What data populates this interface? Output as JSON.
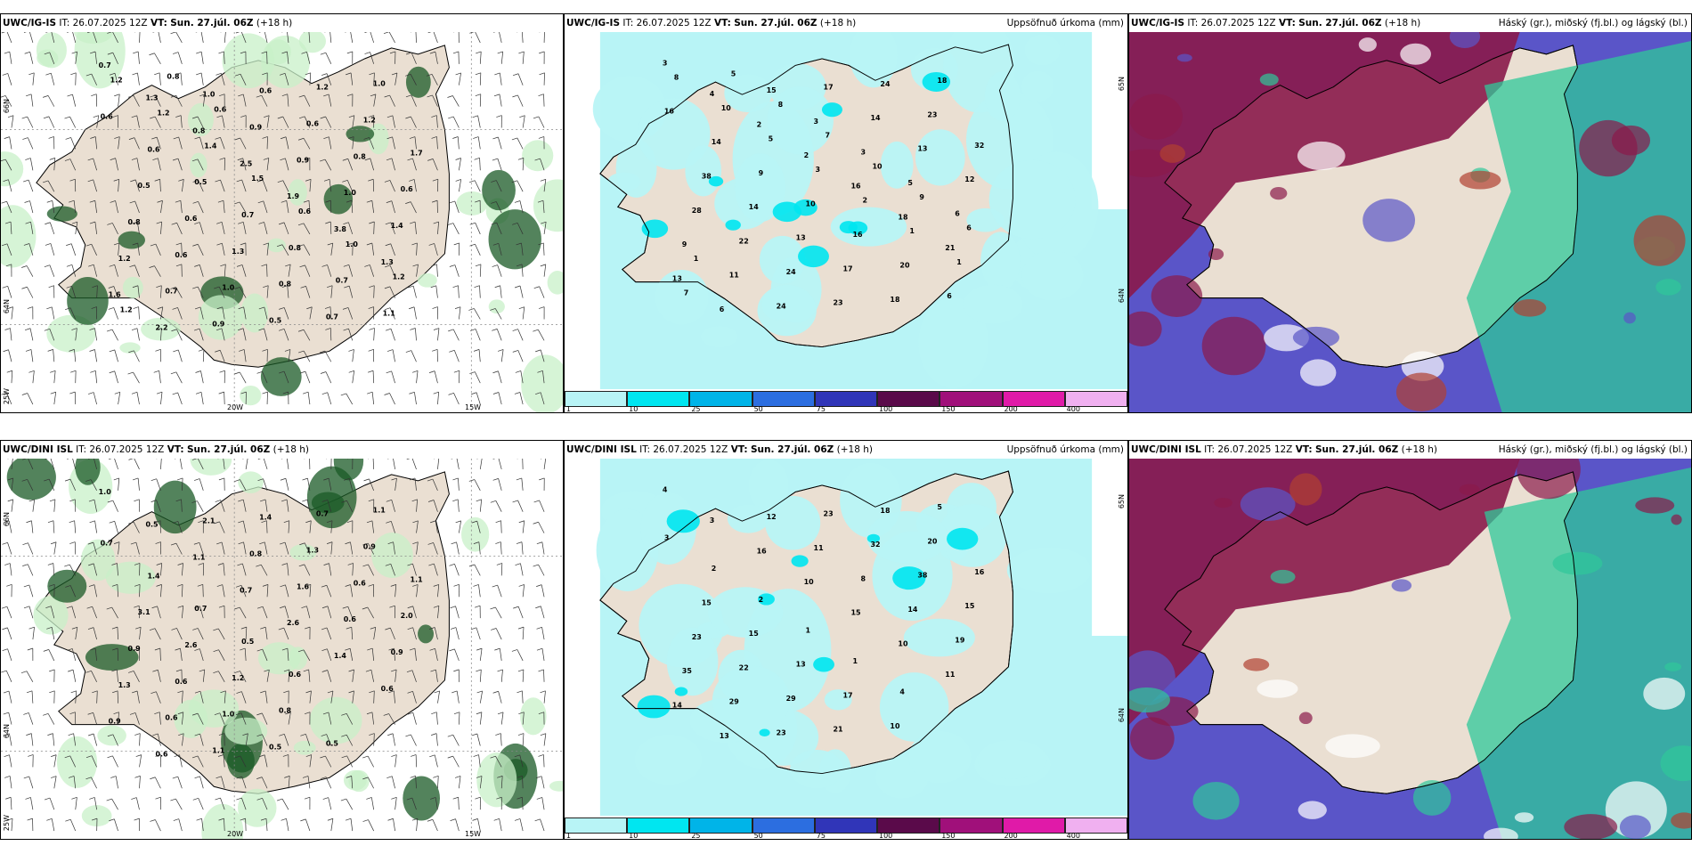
{
  "panels": [
    {
      "model": "UWC/IG-IS",
      "init": "IT: 26.07.2025 12Z",
      "vt_label": "VT:",
      "vt": "Sun. 27.júl. 06Z",
      "lead": "(+18 h)",
      "right_title": "",
      "values": [
        "0.7",
        "1.3",
        "0.8",
        "2.5",
        "1.9",
        "3.8",
        "1.3",
        "1.6",
        "2.2",
        "1.0",
        "0.9",
        "0.9",
        "1.0",
        "1.4",
        "1.2",
        "0.7",
        "0.9",
        "0.6",
        "0.6",
        "0.8",
        "0.6",
        "0.8",
        "0.6",
        "1.0",
        "0.5",
        "1.2",
        "1.2",
        "1.7",
        "0.5",
        "0.6",
        "1.3",
        "0.8",
        "0.7",
        "1.0",
        "0.6",
        "0.6",
        "0.5",
        "0.7",
        "0.8",
        "0.7",
        "1.1",
        "1.2",
        "1.2",
        "1.4",
        "1.5",
        "0.6",
        "1.0",
        "1.2",
        "1.2",
        "0.8",
        "0.6"
      ],
      "axes": {
        "lat_n1": "66N",
        "lat_n2": "64N",
        "lon1": "20W",
        "lon2": "15W",
        "lon_left": "25W"
      }
    },
    {
      "model": "UWC/IG-IS",
      "init": "IT: 26.07.2025 12Z",
      "vt_label": "VT:",
      "vt": "Sun. 27.júl. 06Z",
      "lead": "(+18 h)",
      "right_title": "Uppsöfnuð úrkoma (mm)",
      "values": [
        "3",
        "4",
        "2",
        "2",
        "16",
        "18",
        "21",
        "13",
        "6",
        "15",
        "3",
        "3",
        "5",
        "6",
        "9",
        "11",
        "24",
        "17",
        "14",
        "13",
        "12",
        "28",
        "22",
        "24",
        "23",
        "24",
        "23",
        "32",
        "38",
        "14",
        "13",
        "17",
        "18",
        "18",
        "16",
        "14",
        "9",
        "10",
        "16",
        "20",
        "6",
        "8",
        "10",
        "5",
        "3",
        "2",
        "1",
        "1",
        "7",
        "5",
        "8",
        "7",
        "10",
        "9",
        "6",
        "1"
      ],
      "axes": {
        "lat_n1": "65N",
        "lat_n2": "64N"
      },
      "colorbar": [
        "1",
        "10",
        "25",
        "50",
        "75",
        "100",
        "150",
        "200",
        "400"
      ]
    },
    {
      "model": "UWC/IG-IS",
      "init": "IT: 26.07.2025 12Z",
      "vt_label": "VT:",
      "vt": "Sun. 27.júl. 06Z",
      "lead": "(+18 h)",
      "right_title": "Háský (gr.), miðský (fj.bl.) og lágský (bl.)",
      "values": [],
      "axes": {}
    },
    {
      "model": "UWC/DINI ISL",
      "init": "IT: 26.07.2025 12Z",
      "vt_label": "VT:",
      "vt": "Sun. 27.júl. 06Z",
      "lead": "(+18 h)",
      "right_title": "",
      "values": [
        "1.0",
        "0.5",
        "1.1",
        "0.7",
        "2.6",
        "1.4",
        "0.6",
        "0.9",
        "0.6",
        "2.1",
        "0.8",
        "1.6",
        "0.6",
        "0.9",
        "1.3",
        "0.6",
        "1.1",
        "1.4",
        "1.3",
        "0.6",
        "2.0",
        "0.9",
        "0.6",
        "1.0",
        "0.5",
        "0.7",
        "0.9",
        "1.1",
        "3.1",
        "2.6",
        "1.2",
        "0.8",
        "0.5",
        "1.1",
        "0.7",
        "1.4",
        "0.7",
        "0.5",
        "0.6"
      ],
      "axes": {
        "lat_n1": "66N",
        "lat_n2": "64N",
        "lon1": "20W",
        "lon2": "15W",
        "lon_left": "25W"
      }
    },
    {
      "model": "UWC/DINI ISL",
      "init": "IT: 26.07.2025 12Z",
      "vt_label": "VT:",
      "vt": "Sun. 27.júl. 06Z",
      "lead": "(+18 h)",
      "right_title": "Uppsöfnuð úrkoma (mm)",
      "values": [
        "4",
        "3",
        "16",
        "10",
        "15",
        "10",
        "11",
        "14",
        "13",
        "12",
        "11",
        "8",
        "14",
        "19",
        "35",
        "29",
        "23",
        "23",
        "32",
        "38",
        "15",
        "23",
        "22",
        "29",
        "21",
        "18",
        "20",
        "16",
        "15",
        "15",
        "13",
        "17",
        "10",
        "5",
        "3",
        "2",
        "2",
        "1",
        "1",
        "4"
      ],
      "axes": {
        "lat_n1": "65N",
        "lat_n2": "64N"
      },
      "colorbar": [
        "1",
        "10",
        "25",
        "50",
        "75",
        "100",
        "150",
        "200",
        "400"
      ]
    },
    {
      "model": "UWC/DINI ISL",
      "init": "IT: 26.07.2025 12Z",
      "vt_label": "VT:",
      "vt": "Sun. 27.júl. 06Z",
      "lead": "(+18 h)",
      "right_title": "Háský (gr.), miðský (fj.bl.) og lágský (bl.)",
      "values": [],
      "axes": {}
    }
  ],
  "colors": {
    "land": "#eadfd2",
    "sea": "#ffffff",
    "precip_light": "#b8f4f6",
    "precip_mid": "#00e6f0",
    "wind_green_light": "#c8f0c8",
    "wind_green_dark": "#1a5a25",
    "cloud_high": "#8a1a4a",
    "cloud_mid": "#5a55c8",
    "cloud_low": "#2fc89a",
    "colorbar": [
      "#b8f4f6",
      "#00e6f0",
      "#00b4e8",
      "#2c6ee0",
      "#3035b8",
      "#5a0a4a",
      "#a0107a",
      "#e01aa8",
      "#f0b0f0"
    ]
  }
}
